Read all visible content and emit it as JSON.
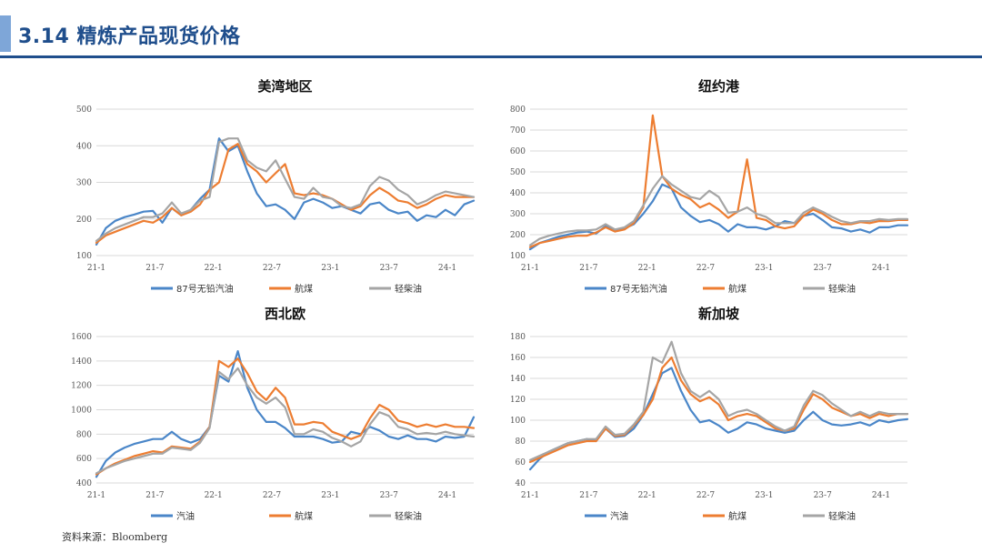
{
  "page": {
    "title": "3.14 精炼产品现货价格",
    "source": "资料来源：Bloomberg"
  },
  "colors": {
    "header_accent": "#7ea6d8",
    "header_rule": "#1f4e8c",
    "series_1": "#4a86c8",
    "series_2": "#ed7d31",
    "series_3": "#a5a5a5"
  },
  "chart_data": [
    {
      "type": "line",
      "title": "美湾地区",
      "x_ticks": [
        "21-1",
        "21-7",
        "22-1",
        "22-7",
        "23-1",
        "23-7",
        "24-1"
      ],
      "x_range": [
        0,
        40
      ],
      "ylim": [
        100,
        500
      ],
      "y_ticks": [
        100,
        200,
        300,
        400,
        500
      ],
      "grid": true,
      "legend_position": "bottom",
      "x": [
        0,
        1,
        2,
        3,
        4,
        5,
        6,
        7,
        8,
        9,
        10,
        11,
        12,
        13,
        14,
        15,
        16,
        17,
        18,
        19,
        20,
        21,
        22,
        23,
        24,
        25,
        26,
        27,
        28,
        29,
        30,
        31,
        32,
        33,
        34,
        35,
        36,
        37,
        38,
        39,
        40
      ],
      "series": [
        {
          "name": "87号无铅汽油",
          "values": [
            130,
            175,
            195,
            205,
            212,
            220,
            222,
            190,
            230,
            210,
            225,
            255,
            280,
            420,
            385,
            400,
            330,
            270,
            235,
            240,
            225,
            200,
            245,
            255,
            245,
            230,
            235,
            225,
            215,
            240,
            245,
            225,
            215,
            220,
            195,
            210,
            205,
            225,
            210,
            240,
            250
          ]
        },
        {
          "name": "航煤",
          "values": [
            135,
            155,
            165,
            175,
            185,
            195,
            190,
            205,
            230,
            210,
            220,
            240,
            280,
            300,
            390,
            405,
            350,
            330,
            300,
            325,
            350,
            270,
            265,
            270,
            265,
            255,
            240,
            225,
            235,
            265,
            285,
            270,
            250,
            245,
            230,
            240,
            255,
            265,
            260,
            260,
            260
          ]
        },
        {
          "name": "轻柴油",
          "values": [
            140,
            160,
            175,
            185,
            195,
            205,
            205,
            215,
            245,
            215,
            225,
            250,
            260,
            410,
            420,
            420,
            360,
            340,
            330,
            360,
            310,
            260,
            255,
            285,
            260,
            255,
            235,
            230,
            240,
            290,
            315,
            305,
            280,
            265,
            240,
            250,
            265,
            275,
            270,
            265,
            260
          ]
        }
      ]
    },
    {
      "type": "line",
      "title": "纽约港",
      "x_ticks": [
        "21-1",
        "21-7",
        "22-1",
        "22-7",
        "23-1",
        "23-7",
        "24-1"
      ],
      "x_range": [
        0,
        40
      ],
      "ylim": [
        100,
        800
      ],
      "y_ticks": [
        100,
        200,
        300,
        400,
        500,
        600,
        700,
        800
      ],
      "grid": true,
      "legend_position": "bottom",
      "x": [
        0,
        1,
        2,
        3,
        4,
        5,
        6,
        7,
        8,
        9,
        10,
        11,
        12,
        13,
        14,
        15,
        16,
        17,
        18,
        19,
        20,
        21,
        22,
        23,
        24,
        25,
        26,
        27,
        28,
        29,
        30,
        31,
        32,
        33,
        34,
        35,
        36,
        37,
        38,
        39,
        40
      ],
      "series": [
        {
          "name": "87号无铅汽油",
          "values": [
            130,
            160,
            175,
            190,
            200,
            210,
            215,
            205,
            240,
            220,
            230,
            250,
            300,
            360,
            440,
            420,
            330,
            290,
            260,
            270,
            250,
            215,
            250,
            235,
            235,
            225,
            240,
            265,
            255,
            290,
            300,
            270,
            235,
            230,
            215,
            225,
            210,
            235,
            235,
            245,
            245
          ]
        },
        {
          "name": "航煤",
          "values": [
            140,
            160,
            170,
            180,
            190,
            195,
            195,
            210,
            235,
            215,
            225,
            255,
            330,
            770,
            480,
            420,
            390,
            370,
            330,
            350,
            320,
            280,
            310,
            560,
            280,
            270,
            240,
            230,
            240,
            290,
            320,
            300,
            270,
            250,
            250,
            260,
            255,
            265,
            265,
            270,
            270
          ]
        },
        {
          "name": "轻柴油",
          "values": [
            150,
            180,
            195,
            205,
            215,
            220,
            220,
            225,
            250,
            225,
            235,
            265,
            340,
            420,
            480,
            440,
            410,
            380,
            370,
            410,
            380,
            305,
            310,
            330,
            300,
            285,
            255,
            255,
            255,
            305,
            330,
            310,
            285,
            265,
            255,
            265,
            265,
            275,
            270,
            275,
            275
          ]
        }
      ]
    },
    {
      "type": "line",
      "title": "西北欧",
      "x_ticks": [
        "21-1",
        "21-7",
        "22-1",
        "22-7",
        "23-1",
        "23-7",
        "24-1"
      ],
      "x_range": [
        0,
        40
      ],
      "ylim": [
        400,
        1600
      ],
      "y_ticks": [
        400,
        600,
        800,
        1000,
        1200,
        1400,
        1600
      ],
      "grid": true,
      "legend_position": "bottom",
      "x": [
        0,
        1,
        2,
        3,
        4,
        5,
        6,
        7,
        8,
        9,
        10,
        11,
        12,
        13,
        14,
        15,
        16,
        17,
        18,
        19,
        20,
        21,
        22,
        23,
        24,
        25,
        26,
        27,
        28,
        29,
        30,
        31,
        32,
        33,
        34,
        35,
        36,
        37,
        38,
        39,
        40
      ],
      "series": [
        {
          "name": "汽油",
          "values": [
            450,
            580,
            650,
            690,
            720,
            740,
            760,
            760,
            820,
            760,
            730,
            760,
            860,
            1280,
            1230,
            1480,
            1180,
            1000,
            900,
            900,
            850,
            780,
            780,
            780,
            760,
            730,
            740,
            820,
            800,
            860,
            830,
            780,
            760,
            790,
            760,
            760,
            740,
            780,
            770,
            780,
            940
          ]
        },
        {
          "name": "航煤",
          "values": [
            470,
            520,
            560,
            590,
            620,
            640,
            660,
            650,
            700,
            690,
            680,
            740,
            860,
            1400,
            1350,
            1420,
            1300,
            1150,
            1080,
            1180,
            1100,
            880,
            880,
            900,
            890,
            820,
            790,
            760,
            790,
            930,
            1040,
            1000,
            910,
            890,
            860,
            880,
            860,
            880,
            860,
            860,
            850
          ]
        },
        {
          "name": "轻柴油",
          "values": [
            480,
            520,
            550,
            580,
            600,
            620,
            640,
            640,
            690,
            680,
            670,
            730,
            850,
            1310,
            1250,
            1340,
            1200,
            1100,
            1050,
            1100,
            1020,
            800,
            800,
            840,
            820,
            770,
            740,
            700,
            740,
            880,
            980,
            950,
            860,
            840,
            800,
            810,
            800,
            820,
            800,
            790,
            780
          ]
        }
      ]
    },
    {
      "type": "line",
      "title": "新加坡",
      "x_ticks": [
        "21-1",
        "21-7",
        "22-1",
        "22-7",
        "23-1",
        "23-7",
        "24-1"
      ],
      "x_range": [
        0,
        40
      ],
      "ylim": [
        40,
        180
      ],
      "y_ticks": [
        40,
        60,
        80,
        100,
        120,
        140,
        160,
        180
      ],
      "grid": true,
      "legend_position": "bottom",
      "x": [
        0,
        1,
        2,
        3,
        4,
        5,
        6,
        7,
        8,
        9,
        10,
        11,
        12,
        13,
        14,
        15,
        16,
        17,
        18,
        19,
        20,
        21,
        22,
        23,
        24,
        25,
        26,
        27,
        28,
        29,
        30,
        31,
        32,
        33,
        34,
        35,
        36,
        37,
        38,
        39,
        40
      ],
      "series": [
        {
          "name": "汽油",
          "values": [
            53,
            63,
            70,
            74,
            78,
            80,
            82,
            80,
            92,
            84,
            85,
            92,
            105,
            125,
            145,
            150,
            128,
            110,
            98,
            100,
            95,
            88,
            92,
            98,
            96,
            92,
            90,
            88,
            90,
            100,
            108,
            100,
            96,
            95,
            96,
            98,
            95,
            100,
            98,
            100,
            101
          ]
        },
        {
          "name": "航煤",
          "values": [
            60,
            64,
            68,
            72,
            76,
            78,
            80,
            80,
            92,
            85,
            86,
            95,
            105,
            120,
            150,
            160,
            138,
            125,
            118,
            122,
            115,
            100,
            104,
            106,
            104,
            98,
            92,
            90,
            92,
            110,
            125,
            120,
            112,
            108,
            104,
            106,
            102,
            106,
            104,
            106,
            106
          ]
        },
        {
          "name": "轻柴油",
          "values": [
            62,
            66,
            70,
            74,
            78,
            80,
            82,
            82,
            94,
            86,
            87,
            96,
            108,
            160,
            155,
            175,
            145,
            128,
            122,
            128,
            120,
            104,
            108,
            110,
            106,
            100,
            94,
            90,
            94,
            114,
            128,
            124,
            116,
            110,
            104,
            108,
            104,
            108,
            106,
            106,
            106
          ]
        }
      ]
    }
  ]
}
